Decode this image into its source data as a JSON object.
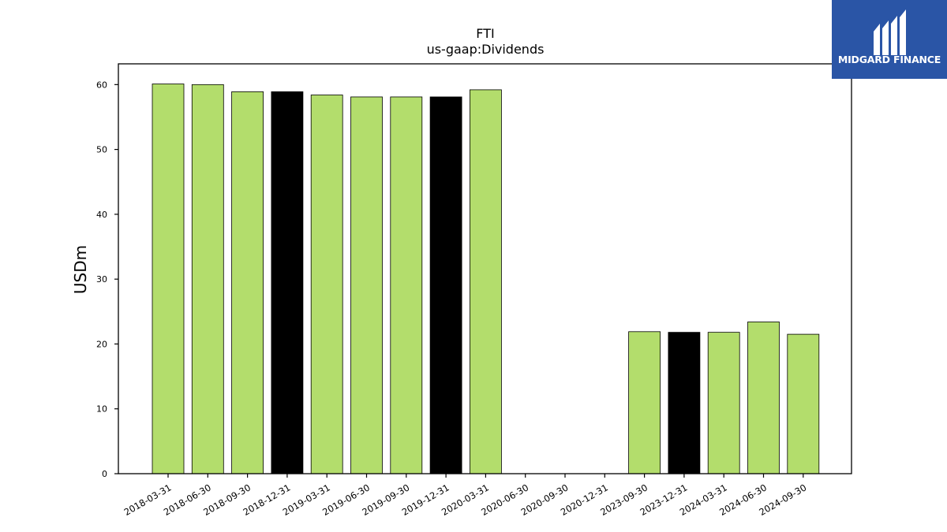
{
  "chart_data": {
    "type": "bar",
    "title": "FTI",
    "subtitle": "us-gaap:Dividends",
    "xlabel": "",
    "ylabel": "USDm",
    "ylim": [
      0,
      63.2
    ],
    "yticks": [
      0,
      10,
      20,
      30,
      40,
      50,
      60
    ],
    "grid": false,
    "legend": "none",
    "categories": [
      "2018-03-31",
      "2018-06-30",
      "2018-09-30",
      "2018-12-31",
      "2019-03-31",
      "2019-06-30",
      "2019-09-30",
      "2019-12-31",
      "2020-03-31",
      "2020-06-30",
      "2020-09-30",
      "2020-12-31",
      "2023-09-30",
      "2023-12-31",
      "2024-03-31",
      "2024-06-30",
      "2024-09-30"
    ],
    "values": [
      60.1,
      60.0,
      58.9,
      58.9,
      58.4,
      58.1,
      58.1,
      58.1,
      59.2,
      null,
      null,
      null,
      21.9,
      21.8,
      21.8,
      23.4,
      21.5
    ],
    "highlight": [
      false,
      false,
      false,
      true,
      false,
      false,
      false,
      true,
      false,
      false,
      false,
      false,
      false,
      true,
      false,
      false,
      false
    ],
    "colors": {
      "bar": "#b3dd6c",
      "highlight": "#000000",
      "edge": "#000000"
    }
  },
  "logo": {
    "text": "MIDGARD FINANCE",
    "background": "#2a55a6"
  }
}
